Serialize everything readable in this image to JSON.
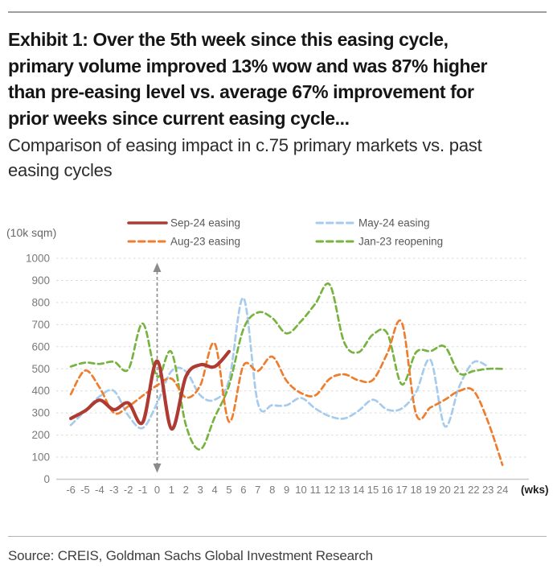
{
  "header": {
    "title_lines": [
      "Exhibit 1: Over the 5th week since this easing cycle,",
      "primary volume improved 13% wow and was 87% higher",
      "than pre-easing level vs. average 67% improvement for",
      "prior weeks since current easing cycle..."
    ],
    "subtitle_lines": [
      "Comparison of easing impact in c.75 primary markets vs. past",
      "easing cycles"
    ]
  },
  "chart_data": {
    "type": "line",
    "title": "Comparison of easing impact in c.75 primary markets vs. past easing cycles",
    "ylabel": "(10k sqm)",
    "xlabel": "(wks)",
    "ylim": [
      0,
      1000
    ],
    "yticks": [
      0,
      100,
      200,
      300,
      400,
      500,
      600,
      700,
      800,
      900,
      1000
    ],
    "xticks": [
      -6,
      -5,
      -4,
      -3,
      -2,
      -1,
      0,
      1,
      2,
      3,
      4,
      5,
      6,
      7,
      8,
      9,
      10,
      11,
      12,
      13,
      14,
      15,
      16,
      17,
      18,
      19,
      20,
      21,
      22,
      23,
      24
    ],
    "grid": "horizontal-dashed",
    "legend_position": "top",
    "annotation": {
      "type": "vertical-double-arrow",
      "x_week": 0
    },
    "colors": {
      "axis_text": "#7a7a7a",
      "gridline": "#d9d9d9",
      "axis_line": "#c8c8c8",
      "arrow": "#8b8b8b",
      "legend_text": "#595959",
      "xlabel_text": "#1d1d1d"
    },
    "series": [
      {
        "name": "Sep-24 easing",
        "color": "#ae3a31",
        "style": "solid",
        "x": [
          -6,
          -5,
          -4,
          -3,
          -2,
          -1,
          0,
          1,
          2,
          3,
          4,
          5
        ],
        "values": [
          275,
          310,
          358,
          315,
          345,
          258,
          535,
          228,
          465,
          518,
          510,
          578
        ]
      },
      {
        "name": "May-24 easing",
        "color": "#a6cbec",
        "style": "dashed",
        "x": [
          -6,
          -5,
          -4,
          -3,
          -2,
          -1,
          0,
          1,
          2,
          3,
          4,
          5,
          6,
          7,
          8,
          9,
          10,
          11,
          12,
          13,
          14,
          15,
          16,
          17,
          18,
          19,
          20,
          21,
          22,
          23
        ],
        "values": [
          245,
          310,
          375,
          400,
          288,
          232,
          345,
          490,
          488,
          380,
          360,
          450,
          820,
          345,
          335,
          335,
          368,
          320,
          285,
          275,
          310,
          360,
          315,
          320,
          395,
          540,
          240,
          420,
          530,
          510
        ]
      },
      {
        "name": "Aug-23 easing",
        "color": "#ee7d2e",
        "style": "dashed",
        "x": [
          -6,
          -5,
          -4,
          -3,
          -2,
          -1,
          0,
          1,
          2,
          3,
          4,
          5,
          6,
          7,
          8,
          9,
          10,
          11,
          12,
          13,
          14,
          15,
          16,
          17,
          18,
          19,
          20,
          21,
          22,
          23,
          24
        ],
        "values": [
          385,
          492,
          415,
          300,
          330,
          378,
          425,
          455,
          370,
          425,
          615,
          260,
          515,
          490,
          555,
          445,
          390,
          380,
          455,
          475,
          448,
          450,
          570,
          710,
          295,
          325,
          360,
          400,
          400,
          260,
          65
        ]
      },
      {
        "name": "Jan-23 reopening",
        "color": "#77b33f",
        "style": "dashed",
        "x": [
          -6,
          -5,
          -4,
          -3,
          -2,
          -1,
          0,
          1,
          2,
          3,
          4,
          5,
          6,
          7,
          8,
          9,
          10,
          11,
          12,
          13,
          14,
          15,
          16,
          17,
          18,
          19,
          20,
          21,
          22,
          23,
          24
        ],
        "values": [
          510,
          528,
          522,
          532,
          498,
          705,
          465,
          575,
          245,
          135,
          280,
          425,
          680,
          755,
          730,
          660,
          715,
          795,
          880,
          620,
          575,
          655,
          660,
          430,
          575,
          580,
          600,
          480,
          490,
          500,
          500
        ]
      }
    ]
  },
  "footer": {
    "source_text": "Source: CREIS, Goldman Sachs Global Investment Research"
  }
}
